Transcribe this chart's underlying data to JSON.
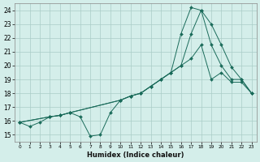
{
  "xlabel": "Humidex (Indice chaleur)",
  "bg_color": "#d4eeea",
  "grid_color": "#aaccc7",
  "line_color": "#1a6b5a",
  "xlim": [
    -0.5,
    23.5
  ],
  "ylim": [
    14.5,
    24.5
  ],
  "xticks": [
    0,
    1,
    2,
    3,
    4,
    5,
    6,
    7,
    8,
    9,
    10,
    11,
    12,
    13,
    14,
    15,
    16,
    17,
    18,
    19,
    20,
    21,
    22,
    23
  ],
  "yticks": [
    15,
    16,
    17,
    18,
    19,
    20,
    21,
    22,
    23,
    24
  ],
  "series1_x": [
    0,
    1,
    2,
    3,
    4,
    5,
    6,
    7,
    8,
    9,
    10,
    11,
    12,
    13,
    14,
    15,
    16,
    17,
    18,
    19,
    20,
    21,
    22,
    23
  ],
  "series1_y": [
    15.9,
    15.6,
    15.9,
    16.3,
    16.4,
    16.6,
    16.3,
    14.9,
    15.0,
    16.6,
    17.5,
    17.8,
    18.0,
    18.5,
    19.0,
    19.5,
    20.0,
    20.5,
    21.5,
    19.0,
    19.5,
    18.8,
    18.8,
    18.0
  ],
  "series2_x": [
    0,
    3,
    4,
    5,
    10,
    11,
    12,
    13,
    14,
    15,
    16,
    17,
    18,
    19,
    20,
    21,
    22,
    23
  ],
  "series2_y": [
    15.9,
    16.3,
    16.4,
    16.6,
    17.5,
    17.8,
    18.0,
    18.5,
    19.0,
    19.5,
    20.0,
    22.3,
    24.0,
    23.0,
    21.5,
    19.9,
    19.0,
    18.0
  ],
  "series3_x": [
    0,
    3,
    4,
    5,
    10,
    11,
    12,
    13,
    14,
    15,
    16,
    17,
    18,
    19,
    20,
    21,
    22,
    23
  ],
  "series3_y": [
    15.9,
    16.3,
    16.4,
    16.6,
    17.5,
    17.8,
    18.0,
    18.5,
    19.0,
    19.5,
    22.3,
    24.2,
    24.0,
    21.5,
    20.0,
    19.0,
    19.0,
    18.0
  ]
}
